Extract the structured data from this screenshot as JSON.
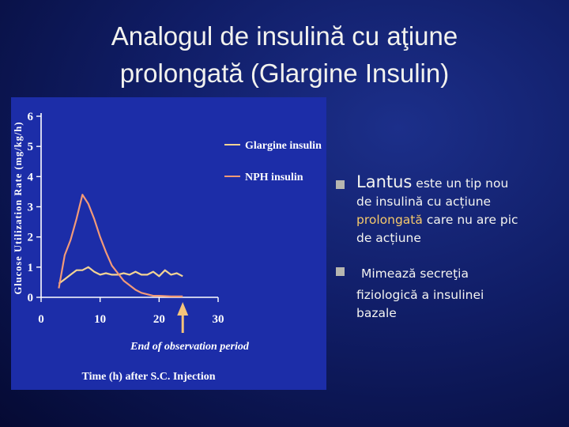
{
  "slide": {
    "title_line1": "Analogul de insulină cu aţiune",
    "title_line2": "prolongată (Glargine Insulin)"
  },
  "bullets": [
    {
      "lead": "Lantus",
      "text_part1": " este un tip nou",
      "text_part2": "de insulină cu acțiune",
      "highlight": "prolongată",
      "text_part3": " care nu are pic",
      "text_part4": "de acțiune"
    },
    {
      "text_part1": "Mimează secreţia",
      "text_part2": "fiziologică a insulinei",
      "text_part3": "bazale"
    }
  ],
  "chart_data": {
    "type": "line",
    "ylabel": "Glucose Utilization Rate (mg/kg/h)",
    "xlabel": "Time (h) after S.C. Injection",
    "annotation": "End of observation period",
    "annotation_x": 24,
    "xlim": [
      0,
      30
    ],
    "ylim": [
      0,
      6
    ],
    "x_ticks": [
      0,
      10,
      20,
      30
    ],
    "y_ticks": [
      0,
      1,
      2,
      3,
      4,
      5,
      6
    ],
    "grid": false,
    "legend_position": "top-right",
    "colors": {
      "glargine": "#f2d394",
      "nph": "#f29a78",
      "axis": "#ffffff",
      "text": "#ffffff",
      "arrow": "#f6c47a"
    },
    "series": [
      {
        "name": "Glargine insulin",
        "x": [
          3,
          4,
          5,
          6,
          7,
          8,
          9,
          10,
          11,
          12,
          13,
          14,
          15,
          16,
          17,
          18,
          19,
          20,
          21,
          22,
          23,
          24
        ],
        "y": [
          0.45,
          0.6,
          0.75,
          0.9,
          0.9,
          1.0,
          0.85,
          0.75,
          0.8,
          0.75,
          0.75,
          0.8,
          0.75,
          0.85,
          0.75,
          0.75,
          0.85,
          0.7,
          0.9,
          0.75,
          0.8,
          0.7
        ]
      },
      {
        "name": "NPH insulin",
        "x": [
          3,
          4,
          5,
          6,
          7,
          8,
          9,
          10,
          11,
          12,
          13,
          14,
          15,
          16,
          17,
          18,
          19,
          20,
          22,
          24
        ],
        "y": [
          0.3,
          1.4,
          1.9,
          2.6,
          3.4,
          3.1,
          2.6,
          2.0,
          1.5,
          1.05,
          0.8,
          0.55,
          0.4,
          0.25,
          0.15,
          0.1,
          0.05,
          0.05,
          0.03,
          0.03
        ]
      }
    ]
  }
}
